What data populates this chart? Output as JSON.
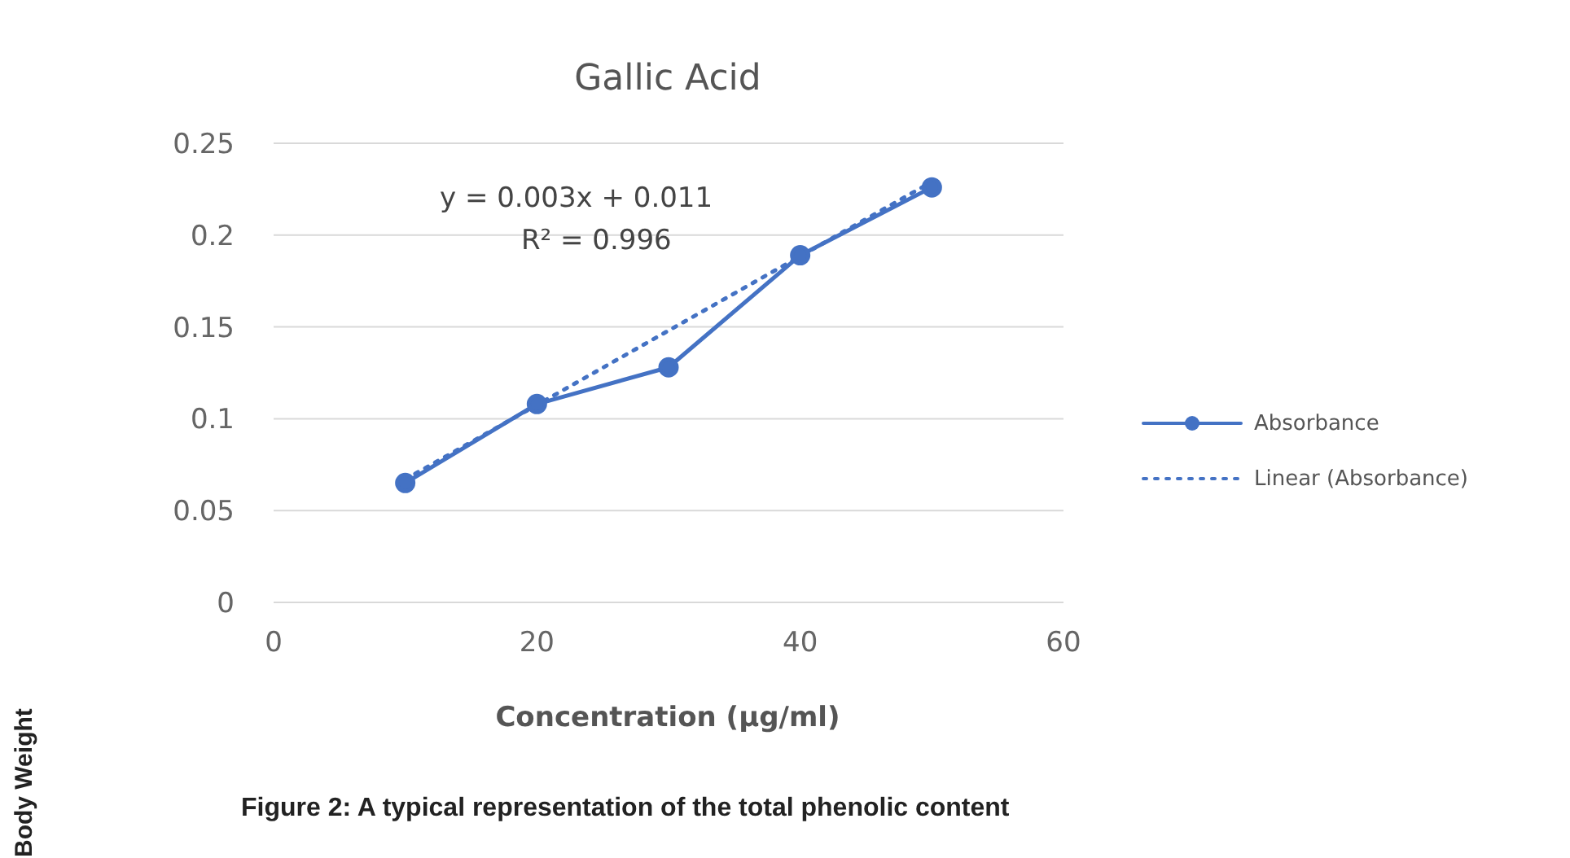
{
  "chart_data": {
    "type": "line",
    "title": "Gallic Acid",
    "xlabel": "Concentration (µg/ml)",
    "x": [
      10,
      20,
      30,
      40,
      50
    ],
    "series": [
      {
        "name": "Absorbance",
        "color": "#4472c4",
        "values": [
          0.065,
          0.108,
          0.128,
          0.189,
          0.226
        ],
        "marker": "circle",
        "line_style": "solid"
      },
      {
        "name": "Linear (Absorbance)",
        "type": "line",
        "color": "#4472c4",
        "x": [
          10,
          50
        ],
        "values": [
          0.067,
          0.229
        ],
        "marker": "none",
        "line_style": "dotted"
      }
    ],
    "xlim": [
      0,
      60
    ],
    "xticks": [
      0,
      20,
      40,
      60
    ],
    "ylim": [
      0,
      0.25
    ],
    "yticks": [
      0,
      0.05,
      0.1,
      0.15,
      0.2,
      0.25
    ],
    "grid": "y",
    "legend": "right",
    "annotations": [
      "y = 0.003x + 0.011",
      "R² = 0.996",
      "Figure 2: A typical representation of the total phenolic content",
      "Body Weight"
    ]
  }
}
